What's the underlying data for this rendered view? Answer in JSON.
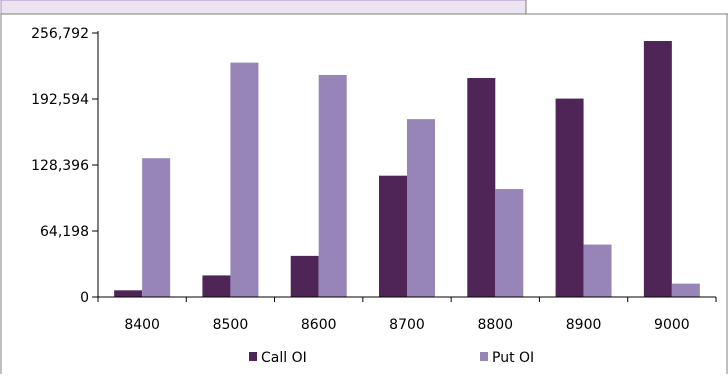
{
  "chart_data": {
    "type": "bar",
    "categories": [
      "8400",
      "8500",
      "8600",
      "8700",
      "8800",
      "8900",
      "9000"
    ],
    "series": [
      {
        "name": "Call OI",
        "values": [
          6500,
          21000,
          40000,
          118000,
          213000,
          193000,
          249000
        ],
        "color": "#4f2558"
      },
      {
        "name": "Put OI",
        "values": [
          135000,
          228000,
          216000,
          173000,
          105000,
          51000,
          13000
        ],
        "color": "#9785b8"
      }
    ],
    "ylim": [
      0,
      256792
    ],
    "yticks": [
      0,
      64198,
      128396,
      192594,
      256792
    ],
    "ytick_labels": [
      "0",
      "64,198",
      "128,396",
      "192,594",
      "256,792"
    ],
    "legend_position": "bottom",
    "grid": false
  },
  "colors": {
    "header_band": "#ede4f2",
    "header_border": "#a98fbf",
    "frame": "#7f7f7f",
    "axis": "#000000"
  }
}
